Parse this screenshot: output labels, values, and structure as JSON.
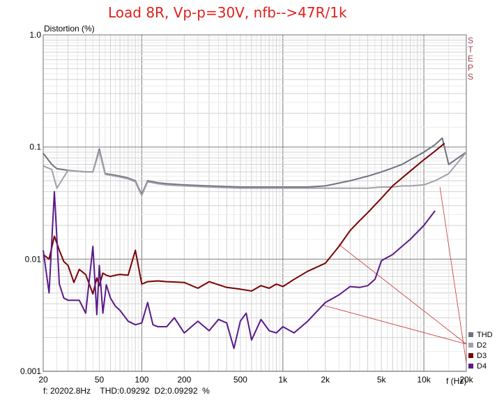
{
  "header": {
    "title": "Load 8R, Vp-p=30V, nfb-->47R/1k"
  },
  "side_label": "STEPS",
  "status": {
    "freq": "f: 20202.8Hz",
    "thd": "THD:0.09292",
    "d2": "D2:0.09292",
    "unit": "%"
  },
  "chart_data": {
    "type": "line",
    "xlabel": "f (Hz)",
    "ylabel": "Distortion (%)",
    "xscale": "log",
    "yscale": "log",
    "xlim": [
      20,
      20000
    ],
    "ylim": [
      0.001,
      1.0
    ],
    "grid": true,
    "legend_position": "bottom-right",
    "x_ticks": [
      "20",
      "50",
      "100",
      "200",
      "500",
      "1k",
      "2k",
      "5k",
      "10k",
      "20k"
    ],
    "y_ticks": [
      "0.001",
      "0.01",
      "0.1",
      "1.0"
    ],
    "series": [
      {
        "name": "THD",
        "color": "#6d7280",
        "x": [
          20,
          23,
          25,
          30,
          35,
          40,
          45,
          50,
          55,
          60,
          70,
          80,
          90,
          95,
          100,
          110,
          130,
          150,
          200,
          300,
          500,
          700,
          1000,
          1500,
          2000,
          3000,
          4000,
          5000,
          6000,
          7000,
          8000,
          10000,
          12000,
          13500,
          15000,
          20000
        ],
        "y": [
          0.088,
          0.07,
          0.064,
          0.062,
          0.061,
          0.06,
          0.06,
          0.096,
          0.058,
          0.057,
          0.055,
          0.053,
          0.05,
          0.043,
          0.038,
          0.05,
          0.048,
          0.047,
          0.046,
          0.045,
          0.044,
          0.044,
          0.044,
          0.044,
          0.045,
          0.05,
          0.055,
          0.06,
          0.065,
          0.07,
          0.077,
          0.09,
          0.105,
          0.12,
          0.07,
          0.09
        ]
      },
      {
        "name": "D2",
        "color": "#a0a0a8",
        "x": [
          20,
          23,
          25,
          30,
          35,
          40,
          45,
          50,
          55,
          60,
          70,
          80,
          90,
          95,
          100,
          110,
          130,
          150,
          200,
          300,
          500,
          700,
          1000,
          1500,
          2000,
          3000,
          4000,
          5000,
          6000,
          7000,
          8000,
          10000,
          12000,
          13500,
          15000,
          20000
        ],
        "y": [
          0.068,
          0.063,
          0.043,
          0.062,
          0.061,
          0.06,
          0.06,
          0.092,
          0.057,
          0.056,
          0.054,
          0.052,
          0.049,
          0.042,
          0.037,
          0.049,
          0.047,
          0.046,
          0.045,
          0.044,
          0.043,
          0.043,
          0.043,
          0.043,
          0.043,
          0.043,
          0.043,
          0.044,
          0.044,
          0.045,
          0.045,
          0.046,
          0.05,
          0.054,
          0.058,
          0.09
        ]
      },
      {
        "name": "D3",
        "color": "#7a0000",
        "x": [
          20,
          22,
          24,
          26,
          28,
          30,
          33,
          36,
          40,
          45,
          48,
          50,
          53,
          56,
          60,
          65,
          70,
          80,
          90,
          100,
          110,
          130,
          150,
          200,
          250,
          300,
          400,
          500,
          600,
          700,
          800,
          900,
          1000,
          1200,
          1500,
          2000,
          2500,
          3000,
          3500,
          4000,
          5000,
          6000,
          8000,
          10000,
          12000,
          14000
        ],
        "y": [
          0.011,
          0.01,
          0.016,
          0.012,
          0.0095,
          0.0088,
          0.0062,
          0.0081,
          0.0073,
          0.0049,
          0.0068,
          0.0058,
          0.0075,
          0.0072,
          0.007,
          0.0072,
          0.0073,
          0.0072,
          0.012,
          0.006,
          0.0063,
          0.0064,
          0.0063,
          0.0062,
          0.0055,
          0.0063,
          0.0056,
          0.0054,
          0.0052,
          0.0058,
          0.0055,
          0.006,
          0.0057,
          0.0066,
          0.0078,
          0.0092,
          0.013,
          0.018,
          0.022,
          0.026,
          0.035,
          0.045,
          0.061,
          0.077,
          0.092,
          0.108
        ]
      },
      {
        "name": "D4",
        "color": "#5a1a8a",
        "x": [
          20,
          22,
          24,
          26,
          28,
          30,
          33,
          36,
          40,
          45,
          48,
          50,
          53,
          56,
          60,
          65,
          70,
          80,
          90,
          100,
          110,
          120,
          130,
          150,
          170,
          200,
          250,
          300,
          350,
          400,
          450,
          500,
          550,
          600,
          700,
          800,
          900,
          1000,
          1200,
          1500,
          2000,
          2500,
          3000,
          3500,
          4000,
          4500,
          5000,
          6000,
          7000,
          8000,
          10000,
          12000
        ],
        "y": [
          0.012,
          0.005,
          0.04,
          0.006,
          0.0045,
          0.0043,
          0.0043,
          0.0043,
          0.0033,
          0.013,
          0.0032,
          0.0088,
          0.0033,
          0.0059,
          0.0045,
          0.0038,
          0.0035,
          0.0028,
          0.0026,
          0.0027,
          0.0041,
          0.0026,
          0.0025,
          0.0025,
          0.003,
          0.0022,
          0.0028,
          0.0023,
          0.0029,
          0.0027,
          0.0016,
          0.0028,
          0.0033,
          0.0019,
          0.0029,
          0.0023,
          0.0022,
          0.0025,
          0.0022,
          0.0028,
          0.0041,
          0.0048,
          0.0057,
          0.0056,
          0.0058,
          0.0066,
          0.0097,
          0.011,
          0.013,
          0.015,
          0.02,
          0.027
        ]
      }
    ],
    "annotation_lines_color": "#c83232"
  }
}
